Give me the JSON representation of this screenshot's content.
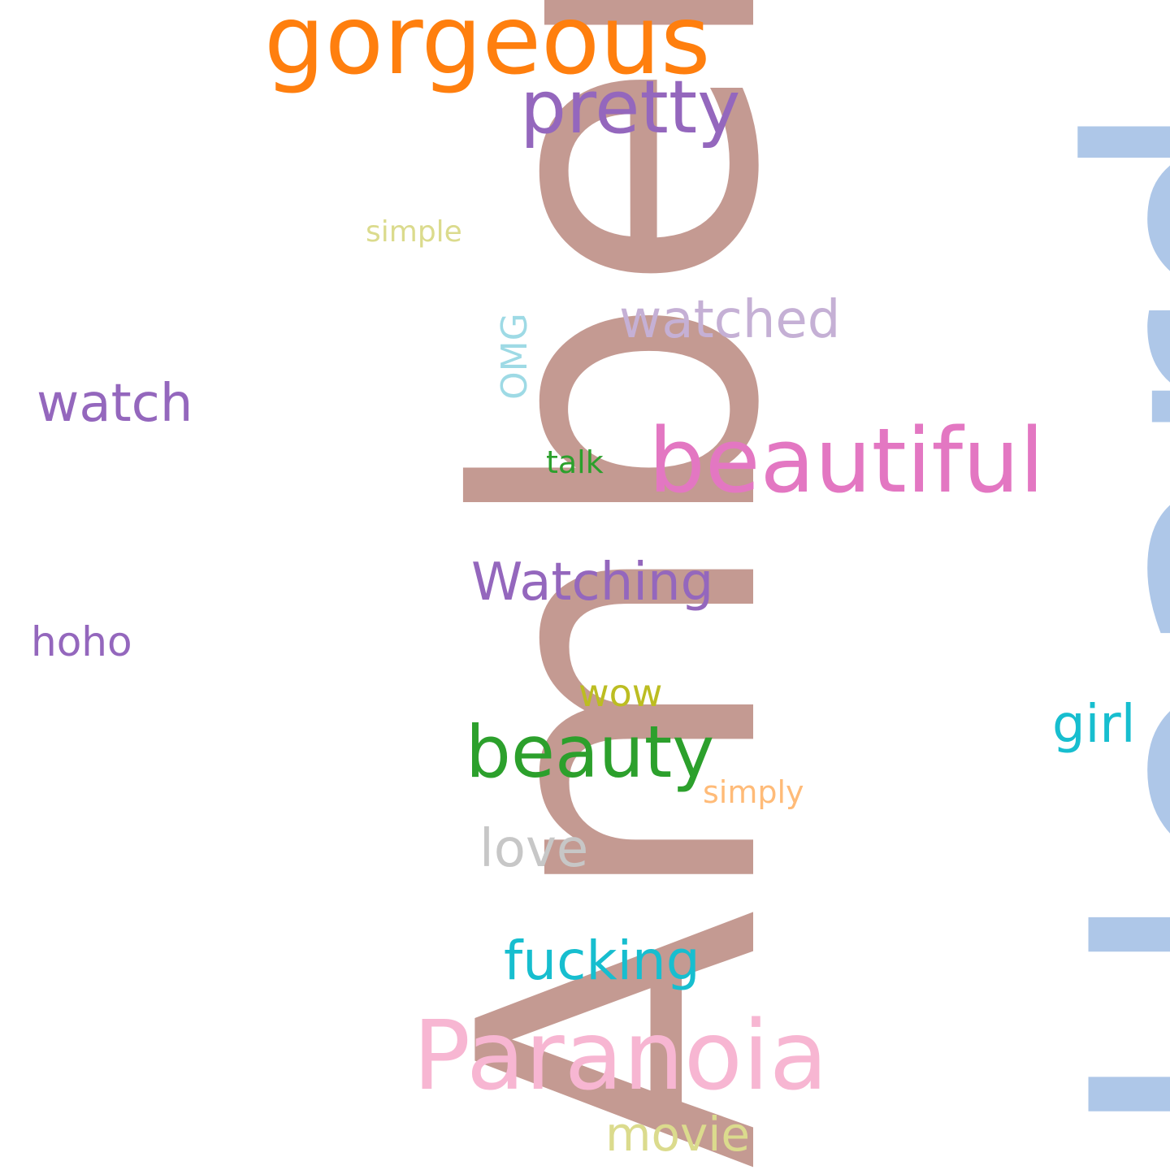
{
  "word_cloud": {
    "background": "#ffffff",
    "words": [
      {
        "id": "amber",
        "text": "Amber",
        "color": "#c49a92",
        "orientation": "vertical"
      },
      {
        "id": "heard",
        "text": "Heard",
        "color": "#aec7e8",
        "orientation": "vertical"
      },
      {
        "id": "gorgeous",
        "text": "gorgeous",
        "color": "#ff7f0e",
        "orientation": "horizontal"
      },
      {
        "id": "pretty",
        "text": "pretty",
        "color": "#9467bd",
        "orientation": "horizontal"
      },
      {
        "id": "simple",
        "text": "simple",
        "color": "#dbdb8d",
        "orientation": "horizontal"
      },
      {
        "id": "watched",
        "text": "watched",
        "color": "#c5b0d5",
        "orientation": "horizontal"
      },
      {
        "id": "omg",
        "text": "OMG",
        "color": "#9edae5",
        "orientation": "vertical"
      },
      {
        "id": "watch",
        "text": "watch",
        "color": "#9467bd",
        "orientation": "horizontal"
      },
      {
        "id": "beautiful",
        "text": "beautiful",
        "color": "#e377c2",
        "orientation": "horizontal"
      },
      {
        "id": "talk",
        "text": "talk",
        "color": "#2ca02c",
        "orientation": "horizontal"
      },
      {
        "id": "watching",
        "text": "Watching",
        "color": "#9467bd",
        "orientation": "horizontal"
      },
      {
        "id": "hoho",
        "text": "hoho",
        "color": "#9467bd",
        "orientation": "horizontal"
      },
      {
        "id": "wow",
        "text": "wow",
        "color": "#bcbd22",
        "orientation": "horizontal"
      },
      {
        "id": "girl",
        "text": "girl",
        "color": "#17becf",
        "orientation": "horizontal"
      },
      {
        "id": "beauty",
        "text": "beauty",
        "color": "#2ca02c",
        "orientation": "horizontal"
      },
      {
        "id": "simply",
        "text": "simply",
        "color": "#ffbb78",
        "orientation": "horizontal"
      },
      {
        "id": "love",
        "text": "love",
        "color": "#c7c7c7",
        "orientation": "horizontal"
      },
      {
        "id": "fucking",
        "text": "fucking",
        "color": "#17becf",
        "orientation": "horizontal"
      },
      {
        "id": "paranoia",
        "text": "Paranoia",
        "color": "#f7b6d2",
        "orientation": "horizontal"
      },
      {
        "id": "movie",
        "text": "movie",
        "color": "#dbdb8d",
        "orientation": "horizontal"
      }
    ]
  }
}
